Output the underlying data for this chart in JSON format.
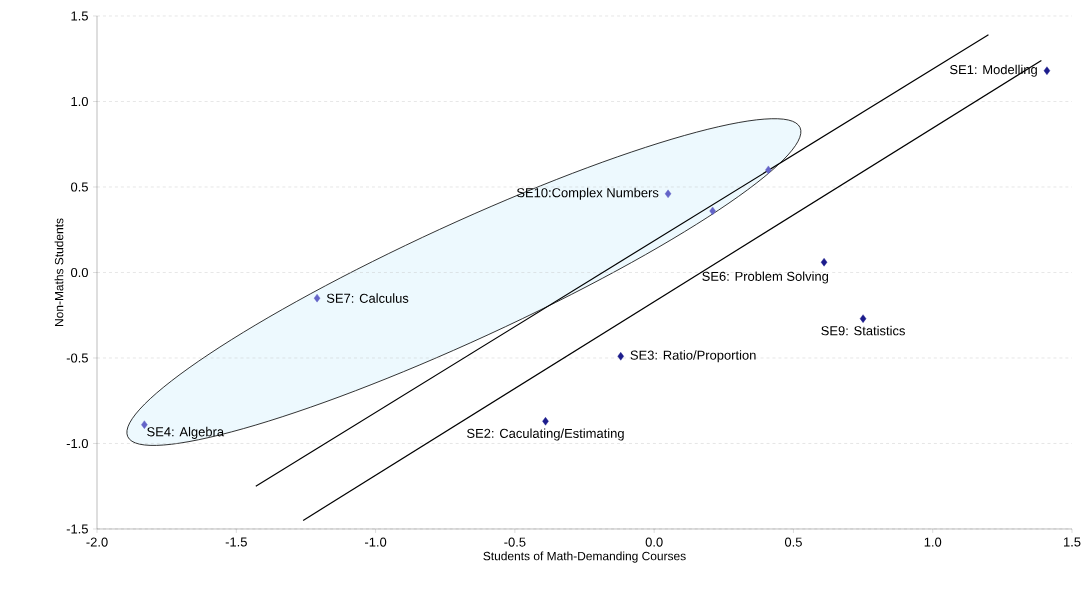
{
  "chart_data": {
    "type": "scatter",
    "xlabel": "Students of Math-Demanding Courses",
    "ylabel": "Non-Maths Students",
    "marker": "diamond",
    "grid": "y",
    "xlim": [
      -2.0,
      1.5
    ],
    "ylim": [
      -1.5,
      1.5
    ],
    "xticks": [
      {
        "value": -2.0,
        "label": "-2.0"
      },
      {
        "value": -1.5,
        "label": "-1.5"
      },
      {
        "value": -1.0,
        "label": "-1.0"
      },
      {
        "value": -0.5,
        "label": "-0.5"
      },
      {
        "value": 0.0,
        "label": "0.0"
      },
      {
        "value": 0.5,
        "label": "0.5"
      },
      {
        "value": 1.0,
        "label": "1.0"
      },
      {
        "value": 1.5,
        "label": "1.5"
      }
    ],
    "yticks": [
      {
        "value": -1.5,
        "label": "-1.5"
      },
      {
        "value": -1.0,
        "label": "-1.0"
      },
      {
        "value": -0.5,
        "label": "-0.5"
      },
      {
        "value": 0.0,
        "label": "0.0"
      },
      {
        "value": 0.5,
        "label": "0.5"
      },
      {
        "value": 1.0,
        "label": "1.0"
      },
      {
        "value": 1.5,
        "label": "1.5"
      }
    ],
    "series": [
      {
        "type": "line",
        "marker": "none",
        "color": "#000000",
        "x": [
          -1.43,
          1.2
        ],
        "values": [
          -1.25,
          1.39
        ]
      },
      {
        "type": "line",
        "marker": "none",
        "color": "#000000",
        "x": [
          -1.26,
          1.39
        ],
        "values": [
          -1.45,
          1.24
        ]
      },
      {
        "color": "#1c1c8c",
        "x": [
          1.41,
          0.61,
          0.75,
          -0.12,
          -0.39
        ],
        "values": [
          1.18,
          0.06,
          -0.27,
          -0.49,
          -0.87
        ]
      },
      {
        "color": "#6464c8",
        "x": [
          0.05,
          0.21,
          0.41,
          -1.21,
          -1.83
        ],
        "values": [
          0.46,
          0.36,
          0.6,
          -0.15,
          -0.89
        ]
      }
    ],
    "annotations": [
      {
        "text": "SE1: Modelling",
        "x": 1.41,
        "y": 1.18
      },
      {
        "text": "SE10:Complex Numbers",
        "x": 0.05,
        "y": 0.46
      },
      {
        "text": "SE6: Problem Solving",
        "x": 0.61,
        "y": 0.06
      },
      {
        "text": "SE9: Statistics",
        "x": 0.75,
        "y": -0.27
      },
      {
        "text": "SE3: Ratio/Proportion",
        "x": -0.12,
        "y": -0.49
      },
      {
        "text": "SE2: Caculating/Estimating",
        "x": -0.39,
        "y": -0.87
      },
      {
        "text": "SE7: Calculus",
        "x": -1.21,
        "y": -0.15
      },
      {
        "text": "SE4: Algebra",
        "x": -1.83,
        "y": -0.89
      }
    ]
  }
}
